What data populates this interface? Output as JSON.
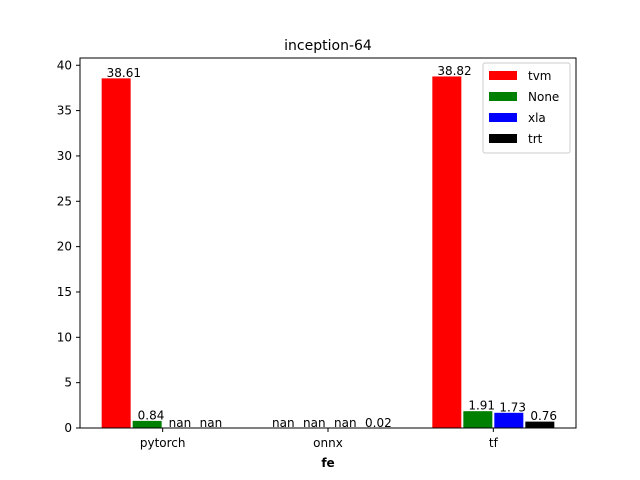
{
  "chart_data": {
    "type": "bar",
    "title": "inception-64",
    "xlabel": "fe",
    "ylabel": "",
    "categories": [
      "pytorch",
      "onnx",
      "tf"
    ],
    "ylim": [
      0,
      40.8
    ],
    "yticks": [
      0,
      5,
      10,
      15,
      20,
      25,
      30,
      35,
      40
    ],
    "grid": false,
    "legend_position": "top-right",
    "series": [
      {
        "name": "tvm",
        "color": "#ff0000",
        "values": [
          38.61,
          null,
          38.82
        ],
        "labels": [
          "38.61",
          "nan",
          "38.82"
        ]
      },
      {
        "name": "None",
        "color": "#008000",
        "values": [
          0.84,
          null,
          1.91
        ],
        "labels": [
          "0.84",
          "nan",
          "1.91"
        ]
      },
      {
        "name": "xla",
        "color": "#0000ff",
        "values": [
          null,
          null,
          1.73
        ],
        "labels": [
          "nan",
          "nan",
          "1.73"
        ]
      },
      {
        "name": "trt",
        "color": "#000000",
        "values": [
          null,
          0.02,
          0.76
        ],
        "labels": [
          "nan",
          "0.02",
          "0.76"
        ]
      }
    ]
  }
}
